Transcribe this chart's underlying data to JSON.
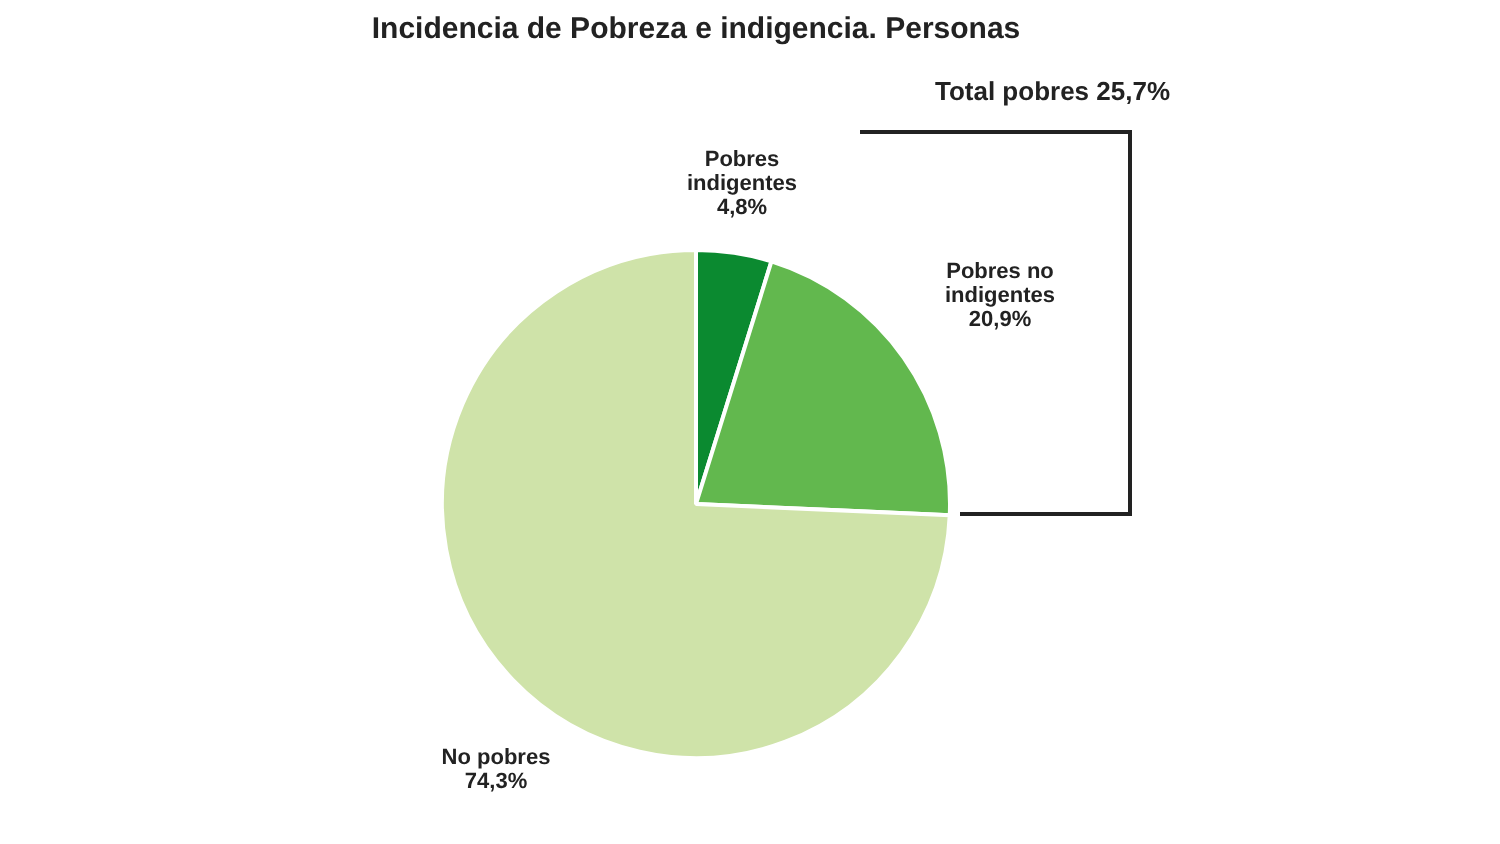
{
  "chart_data": {
    "type": "pie",
    "title": "Incidencia de Pobreza e indigencia. Personas",
    "categories": [
      "Pobres indigentes",
      "Pobres no indigentes",
      "No pobres"
    ],
    "values": [
      4.8,
      20.9,
      74.3
    ],
    "colors": [
      "#0b8a30",
      "#62b84e",
      "#cfe3a9"
    ],
    "value_labels": [
      "4,8%",
      "20,9%",
      "74,3%"
    ],
    "annotations": [
      "Total pobres 25,7%"
    ],
    "legend": false
  }
}
